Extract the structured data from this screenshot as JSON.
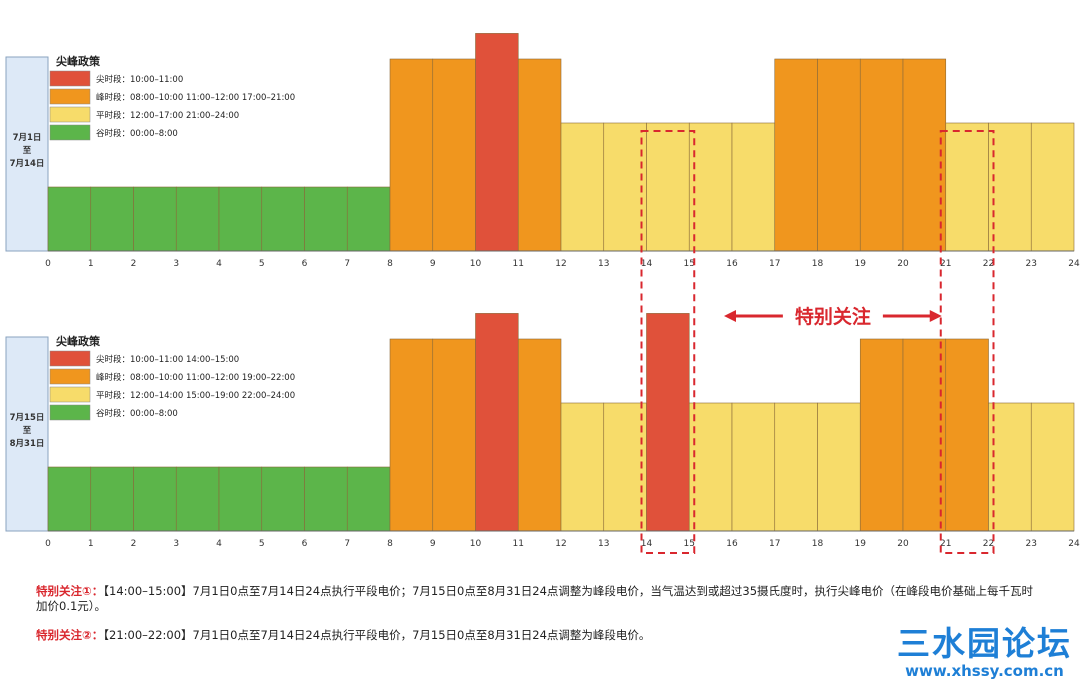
{
  "chart_data": [
    {
      "type": "bar",
      "title": "尖峰政策",
      "period_label": "7月1日至7月14日",
      "period_lines": [
        "7月1日",
        "至",
        "7月14日"
      ],
      "x_ticks": [
        0,
        1,
        2,
        3,
        4,
        5,
        6,
        7,
        8,
        9,
        10,
        11,
        12,
        13,
        14,
        15,
        16,
        17,
        18,
        19,
        20,
        21,
        22,
        23,
        24
      ],
      "legend": [
        {
          "key": "peak_top",
          "label": "尖时段：10:00–11:00",
          "color": "#e0513a"
        },
        {
          "key": "peak",
          "label": "峰时段：08:00–10:00  11:00–12:00  17:00–21:00",
          "color": "#f0961e"
        },
        {
          "key": "flat",
          "label": "平时段：12:00–17:00  21:00–24:00",
          "color": "#f7dc6a"
        },
        {
          "key": "valley",
          "label": "谷时段：00:00–8:00",
          "color": "#5cb54a"
        }
      ],
      "hours": [
        "valley",
        "valley",
        "valley",
        "valley",
        "valley",
        "valley",
        "valley",
        "valley",
        "peak",
        "peak",
        "peak_top",
        "peak",
        "flat",
        "flat",
        "flat",
        "flat",
        "flat",
        "peak",
        "peak",
        "peak",
        "peak",
        "flat",
        "flat",
        "flat"
      ]
    },
    {
      "type": "bar",
      "title": "尖峰政策",
      "period_label": "7月15日至8月31日",
      "period_lines": [
        "7月15日",
        "至",
        "8月31日"
      ],
      "x_ticks": [
        0,
        1,
        2,
        3,
        4,
        5,
        6,
        7,
        8,
        9,
        10,
        11,
        12,
        13,
        14,
        15,
        16,
        17,
        18,
        19,
        20,
        21,
        22,
        23,
        24
      ],
      "legend": [
        {
          "key": "peak_top",
          "label": "尖时段：10:00–11:00  14:00–15:00",
          "color": "#e0513a"
        },
        {
          "key": "peak",
          "label": "峰时段：08:00–10:00  11:00–12:00  19:00–22:00",
          "color": "#f0961e"
        },
        {
          "key": "flat",
          "label": "平时段：12:00–14:00  15:00–19:00  22:00–24:00",
          "color": "#f7dc6a"
        },
        {
          "key": "valley",
          "label": "谷时段：00:00–8:00",
          "color": "#5cb54a"
        }
      ],
      "hours": [
        "valley",
        "valley",
        "valley",
        "valley",
        "valley",
        "valley",
        "valley",
        "valley",
        "peak",
        "peak",
        "peak_top",
        "peak",
        "flat",
        "flat",
        "peak_top",
        "flat",
        "flat",
        "flat",
        "flat",
        "peak",
        "peak",
        "peak",
        "flat",
        "flat"
      ]
    }
  ],
  "level_order": {
    "valley": 1,
    "flat": 2,
    "peak": 3,
    "peak_top": 3.4
  },
  "annotation": {
    "label": "特别关注",
    "arrow_from": 16,
    "arrow_to": 21
  },
  "highlight_ranges": [
    [
      14,
      15
    ],
    [
      21,
      22
    ]
  ],
  "notes": [
    {
      "label": "特别关注①：",
      "text": "【14:00–15:00】7月1日0点至7月14日24点执行平段电价；7月15日0点至8月31日24点调整为峰段电价，当气温达到或超过35摄氏度时，执行尖峰电价（在峰段电价基础上每千瓦时加价0.1元）。"
    },
    {
      "label": "特别关注②：",
      "text": "【21:00–22:00】7月1日0点至7月14日24点执行平段电价，7月15日0点至8月31日24点调整为峰段电价。"
    }
  ],
  "watermark": {
    "brand": "三水园论坛",
    "url": "www.xhssy.com.cn"
  }
}
